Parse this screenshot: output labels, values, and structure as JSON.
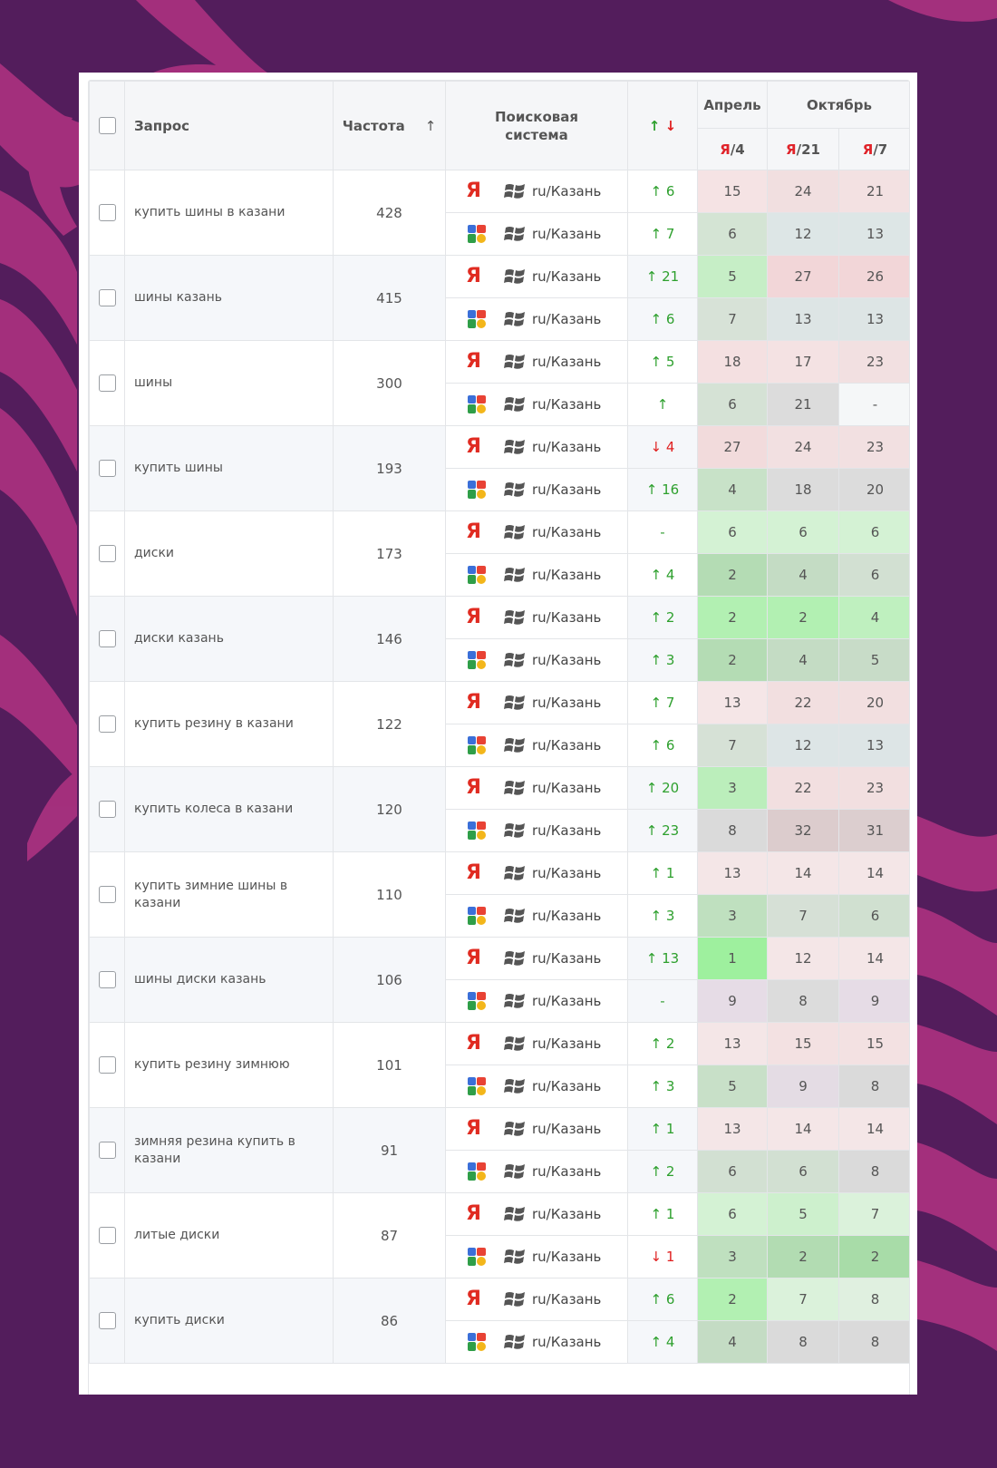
{
  "header": {
    "query": "Запрос",
    "frequency": "Частота",
    "frequency_sort_icon": "↑",
    "search_engine": "Поисковая система",
    "dynamics_up": "↑",
    "dynamics_down": "↓",
    "months": [
      {
        "label": "Апрель"
      },
      {
        "label": "Октябрь"
      }
    ],
    "columns": [
      {
        "prefix": "Я",
        "date": "/4"
      },
      {
        "prefix": "Я",
        "date": "/21"
      },
      {
        "prefix": "Я",
        "date": "/7"
      }
    ]
  },
  "colors": {
    "background": "#531d5c",
    "decor": "#a8317e",
    "up": "#2ea02e",
    "down": "#e02020",
    "yandex": "#e02b21"
  },
  "rows": [
    {
      "query": "купить шины в казани",
      "frequency": "428",
      "engines": [
        {
          "engine": "yandex",
          "region": "ru/Казань",
          "dir": "up",
          "arrow": "↑",
          "delta": "6",
          "pos": [
            {
              "v": "15",
              "bg": "#f5e3e4"
            },
            {
              "v": "24",
              "bg": "#f1dfe0"
            },
            {
              "v": "21",
              "bg": "#f3e1e2"
            }
          ]
        },
        {
          "engine": "google",
          "region": "ru/Казань",
          "dir": "up",
          "arrow": "↑",
          "delta": "7",
          "pos": [
            {
              "v": "6",
              "bg": "#d4e4d4"
            },
            {
              "v": "12",
              "bg": "#dde6e6"
            },
            {
              "v": "13",
              "bg": "#dde6e6"
            }
          ]
        }
      ]
    },
    {
      "query": "шины казань",
      "frequency": "415",
      "engines": [
        {
          "engine": "yandex",
          "region": "ru/Казань",
          "dir": "up",
          "arrow": "↑",
          "delta": "21",
          "pos": [
            {
              "v": "5",
              "bg": "#c6eec6"
            },
            {
              "v": "27",
              "bg": "#f2d6d8"
            },
            {
              "v": "26",
              "bg": "#f2d6d8"
            }
          ]
        },
        {
          "engine": "google",
          "region": "ru/Казань",
          "dir": "up",
          "arrow": "↑",
          "delta": "6",
          "pos": [
            {
              "v": "7",
              "bg": "#d7e2d7"
            },
            {
              "v": "13",
              "bg": "#dde5e5"
            },
            {
              "v": "13",
              "bg": "#dde5e5"
            }
          ]
        }
      ]
    },
    {
      "query": "шины",
      "frequency": "300",
      "engines": [
        {
          "engine": "yandex",
          "region": "ru/Казань",
          "dir": "up",
          "arrow": "↑",
          "delta": "5",
          "pos": [
            {
              "v": "18",
              "bg": "#f4e0e1"
            },
            {
              "v": "17",
              "bg": "#f4e2e3"
            },
            {
              "v": "23",
              "bg": "#f2e0e1"
            }
          ]
        },
        {
          "engine": "google",
          "region": "ru/Казань",
          "dir": "up",
          "arrow": "↑",
          "delta": "",
          "pos": [
            {
              "v": "6",
              "bg": "#d5e2d5"
            },
            {
              "v": "21",
              "bg": "#dcdcdc"
            },
            {
              "v": "-",
              "bg": "#f5f7f8"
            }
          ]
        }
      ]
    },
    {
      "query": "купить шины",
      "frequency": "193",
      "engines": [
        {
          "engine": "yandex",
          "region": "ru/Казань",
          "dir": "down",
          "arrow": "↓",
          "delta": "4",
          "pos": [
            {
              "v": "27",
              "bg": "#f2dbdc"
            },
            {
              "v": "24",
              "bg": "#f2e0e1"
            },
            {
              "v": "23",
              "bg": "#f2e0e1"
            }
          ]
        },
        {
          "engine": "google",
          "region": "ru/Казань",
          "dir": "up",
          "arrow": "↑",
          "delta": "16",
          "pos": [
            {
              "v": "4",
              "bg": "#c8e2c8"
            },
            {
              "v": "18",
              "bg": "#dcdcdc"
            },
            {
              "v": "20",
              "bg": "#dcdcdc"
            }
          ]
        }
      ]
    },
    {
      "query": "диски",
      "frequency": "173",
      "engines": [
        {
          "engine": "yandex",
          "region": "ru/Казань",
          "dir": "same",
          "arrow": "-",
          "delta": "",
          "pos": [
            {
              "v": "6",
              "bg": "#d4f2d4"
            },
            {
              "v": "6",
              "bg": "#d4f2d4"
            },
            {
              "v": "6",
              "bg": "#d4f2d4"
            }
          ]
        },
        {
          "engine": "google",
          "region": "ru/Казань",
          "dir": "up",
          "arrow": "↑",
          "delta": "4",
          "pos": [
            {
              "v": "2",
              "bg": "#b4dcb4"
            },
            {
              "v": "4",
              "bg": "#c4dcc4"
            },
            {
              "v": "6",
              "bg": "#d2e0d2"
            }
          ]
        }
      ]
    },
    {
      "query": "диски казань",
      "frequency": "146",
      "engines": [
        {
          "engine": "yandex",
          "region": "ru/Казань",
          "dir": "up",
          "arrow": "↑",
          "delta": "2",
          "pos": [
            {
              "v": "2",
              "bg": "#b2f0b2"
            },
            {
              "v": "2",
              "bg": "#b2f0b2"
            },
            {
              "v": "4",
              "bg": "#bff0bf"
            }
          ]
        },
        {
          "engine": "google",
          "region": "ru/Казань",
          "dir": "up",
          "arrow": "↑",
          "delta": "3",
          "pos": [
            {
              "v": "2",
              "bg": "#b4dcb4"
            },
            {
              "v": "4",
              "bg": "#c4dcc4"
            },
            {
              "v": "5",
              "bg": "#c8dcc8"
            }
          ]
        }
      ]
    },
    {
      "query": "купить резину в казани",
      "frequency": "122",
      "engines": [
        {
          "engine": "yandex",
          "region": "ru/Казань",
          "dir": "up",
          "arrow": "↑",
          "delta": "7",
          "pos": [
            {
              "v": "13",
              "bg": "#f5e6e7"
            },
            {
              "v": "22",
              "bg": "#f2dfe0"
            },
            {
              "v": "20",
              "bg": "#f2dfe0"
            }
          ]
        },
        {
          "engine": "google",
          "region": "ru/Казань",
          "dir": "up",
          "arrow": "↑",
          "delta": "6",
          "pos": [
            {
              "v": "7",
              "bg": "#d6e1d6"
            },
            {
              "v": "12",
              "bg": "#dde5e6"
            },
            {
              "v": "13",
              "bg": "#dde5e6"
            }
          ]
        }
      ]
    },
    {
      "query": "купить колеса в казани",
      "frequency": "120",
      "engines": [
        {
          "engine": "yandex",
          "region": "ru/Казань",
          "dir": "up",
          "arrow": "↑",
          "delta": "20",
          "pos": [
            {
              "v": "3",
              "bg": "#bbeebb"
            },
            {
              "v": "22",
              "bg": "#f2dfe0"
            },
            {
              "v": "23",
              "bg": "#f2dfe0"
            }
          ]
        },
        {
          "engine": "google",
          "region": "ru/Казань",
          "dir": "up",
          "arrow": "↑",
          "delta": "23",
          "pos": [
            {
              "v": "8",
              "bg": "#dadada"
            },
            {
              "v": "32",
              "bg": "#dccccd"
            },
            {
              "v": "31",
              "bg": "#dccecf"
            }
          ]
        }
      ]
    },
    {
      "query": "купить зимние шины в казани",
      "frequency": "110",
      "engines": [
        {
          "engine": "yandex",
          "region": "ru/Казань",
          "dir": "up",
          "arrow": "↑",
          "delta": "1",
          "pos": [
            {
              "v": "13",
              "bg": "#f4e6e7"
            },
            {
              "v": "14",
              "bg": "#f4e6e7"
            },
            {
              "v": "14",
              "bg": "#f4e6e7"
            }
          ]
        },
        {
          "engine": "google",
          "region": "ru/Казань",
          "dir": "up",
          "arrow": "↑",
          "delta": "3",
          "pos": [
            {
              "v": "3",
              "bg": "#bfe0bf"
            },
            {
              "v": "7",
              "bg": "#d6e0d6"
            },
            {
              "v": "6",
              "bg": "#d0e0d0"
            }
          ]
        }
      ]
    },
    {
      "query": "шины диски казань",
      "frequency": "106",
      "engines": [
        {
          "engine": "yandex",
          "region": "ru/Казань",
          "dir": "up",
          "arrow": "↑",
          "delta": "13",
          "pos": [
            {
              "v": "1",
              "bg": "#9ef09e"
            },
            {
              "v": "12",
              "bg": "#f4e6e7"
            },
            {
              "v": "14",
              "bg": "#f4e6e7"
            }
          ]
        },
        {
          "engine": "google",
          "region": "ru/Казань",
          "dir": "same",
          "arrow": "-",
          "delta": "",
          "pos": [
            {
              "v": "9",
              "bg": "#e6dce6"
            },
            {
              "v": "8",
              "bg": "#dcdcdc"
            },
            {
              "v": "9",
              "bg": "#e6dce6"
            }
          ]
        }
      ]
    },
    {
      "query": "купить резину зимнюю",
      "frequency": "101",
      "engines": [
        {
          "engine": "yandex",
          "region": "ru/Казань",
          "dir": "up",
          "arrow": "↑",
          "delta": "2",
          "pos": [
            {
              "v": "13",
              "bg": "#f4e6e7"
            },
            {
              "v": "15",
              "bg": "#f3e1e2"
            },
            {
              "v": "15",
              "bg": "#f3e1e2"
            }
          ]
        },
        {
          "engine": "google",
          "region": "ru/Казань",
          "dir": "up",
          "arrow": "↑",
          "delta": "3",
          "pos": [
            {
              "v": "5",
              "bg": "#c8e0c8"
            },
            {
              "v": "9",
              "bg": "#e4dce4"
            },
            {
              "v": "8",
              "bg": "#dadada"
            }
          ]
        }
      ]
    },
    {
      "query": "зимняя резина купить в казани",
      "frequency": "91",
      "engines": [
        {
          "engine": "yandex",
          "region": "ru/Казань",
          "dir": "up",
          "arrow": "↑",
          "delta": "1",
          "pos": [
            {
              "v": "13",
              "bg": "#f4e6e7"
            },
            {
              "v": "14",
              "bg": "#f4e6e7"
            },
            {
              "v": "14",
              "bg": "#f4e6e7"
            }
          ]
        },
        {
          "engine": "google",
          "region": "ru/Казань",
          "dir": "up",
          "arrow": "↑",
          "delta": "2",
          "pos": [
            {
              "v": "6",
              "bg": "#d2e0d2"
            },
            {
              "v": "6",
              "bg": "#d2e0d2"
            },
            {
              "v": "8",
              "bg": "#dadada"
            }
          ]
        }
      ]
    },
    {
      "query": "литые диски",
      "frequency": "87",
      "engines": [
        {
          "engine": "yandex",
          "region": "ru/Казань",
          "dir": "up",
          "arrow": "↑",
          "delta": "1",
          "pos": [
            {
              "v": "6",
              "bg": "#d4f2d4"
            },
            {
              "v": "5",
              "bg": "#cdf0cd"
            },
            {
              "v": "7",
              "bg": "#dbf2db"
            }
          ]
        },
        {
          "engine": "google",
          "region": "ru/Казань",
          "dir": "down",
          "arrow": "↓",
          "delta": "1",
          "pos": [
            {
              "v": "3",
              "bg": "#bfe0bf"
            },
            {
              "v": "2",
              "bg": "#b2dcb2"
            },
            {
              "v": "2",
              "bg": "#a8dca8"
            }
          ]
        }
      ]
    },
    {
      "query": "купить диски",
      "frequency": "86",
      "engines": [
        {
          "engine": "yandex",
          "region": "ru/Казань",
          "dir": "up",
          "arrow": "↑",
          "delta": "6",
          "pos": [
            {
              "v": "2",
              "bg": "#b2f0b2"
            },
            {
              "v": "7",
              "bg": "#dbf2db"
            },
            {
              "v": "8",
              "bg": "#e0f0e0"
            }
          ]
        },
        {
          "engine": "google",
          "region": "ru/Казань",
          "dir": "up",
          "arrow": "↑",
          "delta": "4",
          "pos": [
            {
              "v": "4",
              "bg": "#c4dcc4"
            },
            {
              "v": "8",
              "bg": "#dadada"
            },
            {
              "v": "8",
              "bg": "#dadada"
            }
          ]
        }
      ]
    }
  ]
}
